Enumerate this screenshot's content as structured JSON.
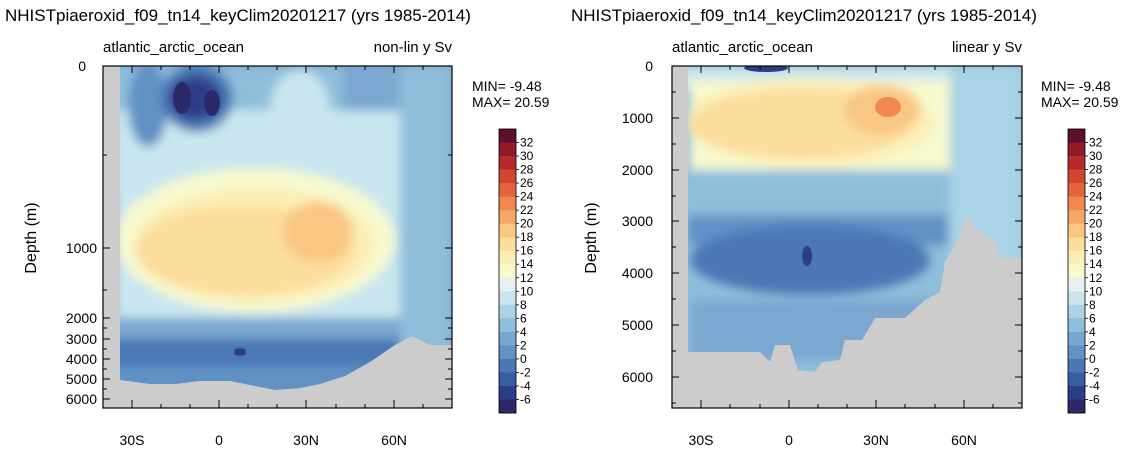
{
  "chart_data": [
    {
      "type": "contour",
      "title": "NHISTpiaeroxid_f09_tn14_keyClim20201217 (yrs 1985-2014)",
      "left_label": "atlantic_arctic_ocean",
      "right_label": "non-lin y Sv",
      "ylabel": "Depth (m)",
      "y_scale": "non-linear",
      "y_ticks": [
        0,
        1000,
        2000,
        3000,
        4000,
        5000,
        6000
      ],
      "x_ticks": [
        "30S",
        "0",
        "30N",
        "60N"
      ],
      "xlim": [
        -40,
        80
      ],
      "ylim": [
        0,
        6800
      ],
      "min_label": "MIN= -9.48",
      "max_label": "MAX= 20.59",
      "min": -9.48,
      "max": 20.59,
      "colorbar": {
        "labels": [
          "32",
          "30",
          "28",
          "26",
          "24",
          "22",
          "20",
          "18",
          "16",
          "14",
          "12",
          "10",
          "8",
          "6",
          "4",
          "2",
          "0",
          "-2",
          "-4",
          "-6"
        ],
        "levels": [
          32,
          30,
          28,
          26,
          24,
          22,
          20,
          18,
          16,
          14,
          12,
          10,
          8,
          6,
          4,
          2,
          0,
          -2,
          -4,
          -6
        ],
        "colors": [
          "#5e0f2a",
          "#8e1a2b",
          "#b72a2b",
          "#d2452f",
          "#e4633e",
          "#f08850",
          "#f6a766",
          "#f9c683",
          "#fbdd9d",
          "#fcefb6",
          "#f7f9cf",
          "#e3f2f0",
          "#c9e6ee",
          "#abd3e6",
          "#8fbedb",
          "#77a8d0",
          "#6191c5",
          "#4b78b5",
          "#395da0",
          "#2d3e87",
          "#2a2a6a"
        ]
      }
    },
    {
      "type": "contour",
      "title": "NHISTpiaeroxid_f09_tn14_keyClim20201217 (yrs 1985-2014)",
      "left_label": "atlantic_arctic_ocean",
      "right_label": "linear y Sv",
      "ylabel": "Depth (m)",
      "y_scale": "linear",
      "y_ticks": [
        0,
        1000,
        2000,
        3000,
        4000,
        5000,
        6000
      ],
      "x_ticks": [
        "30S",
        "0",
        "30N",
        "60N"
      ],
      "xlim": [
        -40,
        80
      ],
      "ylim": [
        0,
        6800
      ],
      "min_label": "MIN= -9.48",
      "max_label": "MAX= 20.59",
      "min": -9.48,
      "max": 20.59,
      "colorbar": {
        "labels": [
          "32",
          "30",
          "28",
          "26",
          "24",
          "22",
          "20",
          "18",
          "16",
          "14",
          "12",
          "10",
          "8",
          "6",
          "4",
          "2",
          "0",
          "-2",
          "-4",
          "-6"
        ],
        "levels": [
          32,
          30,
          28,
          26,
          24,
          22,
          20,
          18,
          16,
          14,
          12,
          10,
          8,
          6,
          4,
          2,
          0,
          -2,
          -4,
          -6
        ],
        "colors": [
          "#5e0f2a",
          "#8e1a2b",
          "#b72a2b",
          "#d2452f",
          "#e4633e",
          "#f08850",
          "#f6a766",
          "#f9c683",
          "#fbdd9d",
          "#fcefb6",
          "#f7f9cf",
          "#e3f2f0",
          "#c9e6ee",
          "#abd3e6",
          "#8fbedb",
          "#77a8d0",
          "#6191c5",
          "#4b78b5",
          "#395da0",
          "#2d3e87",
          "#2a2a6a"
        ]
      }
    }
  ]
}
